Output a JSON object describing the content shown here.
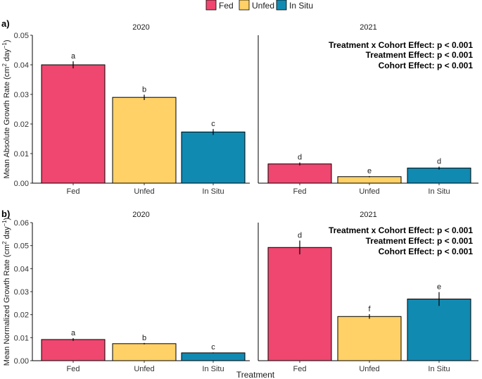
{
  "legend": {
    "items": [
      {
        "label": "Fed",
        "color": "#EF476F"
      },
      {
        "label": "Unfed",
        "color": "#FFD166"
      },
      {
        "label": "In Situ",
        "color": "#118AB2"
      }
    ]
  },
  "xlabel": "Treatment",
  "chart_data": [
    {
      "type": "bar",
      "panel_label": "a)",
      "ylabel": "Mean Absolute Growth Rate (cm",
      "ylabel_sup1": "2",
      "ylabel_mid": " day",
      "ylabel_sup2": "−1",
      "ylabel_end": ")",
      "ylim": [
        0,
        0.05
      ],
      "yticks": [
        "0.00",
        "0.01",
        "0.02",
        "0.03",
        "0.04",
        "0.05"
      ],
      "categories": [
        "Fed",
        "Unfed",
        "In Situ"
      ],
      "facets": [
        {
          "title": "2020",
          "values": [
            0.04,
            0.029,
            0.0173
          ],
          "errors": [
            0.0012,
            0.0009,
            0.001
          ],
          "letters": [
            "a",
            "b",
            "c"
          ]
        },
        {
          "title": "2021",
          "values": [
            0.0065,
            0.0022,
            0.0051
          ],
          "errors": [
            0.0005,
            0.0002,
            0.0005
          ],
          "letters": [
            "d",
            "e",
            "d"
          ]
        }
      ],
      "annotations": [
        "Treatment x Cohort Effect: p < 0.001",
        "Treatment Effect: p < 0.001",
        "Cohort Effect: p < 0.001"
      ]
    },
    {
      "type": "bar",
      "panel_label": "b)",
      "ylabel": "Mean Normalized Growth Rate (cm",
      "ylabel_sup1": "2",
      "ylabel_mid": " day",
      "ylabel_sup2": "−1",
      "ylabel_end": ")",
      "ylim": [
        0,
        0.06
      ],
      "yticks": [
        "0.00",
        "0.01",
        "0.02",
        "0.03",
        "0.04",
        "0.05",
        "0.06"
      ],
      "categories": [
        "Fed",
        "Unfed",
        "In Situ"
      ],
      "facets": [
        {
          "title": "2020",
          "values": [
            0.0092,
            0.0074,
            0.0034
          ],
          "errors": [
            0.0006,
            0.0003,
            0.0002
          ],
          "letters": [
            "a",
            "b",
            "c"
          ]
        },
        {
          "title": "2021",
          "values": [
            0.0492,
            0.0192,
            0.0268
          ],
          "errors": [
            0.003,
            0.001,
            0.003
          ],
          "letters": [
            "d",
            "f",
            "e"
          ]
        }
      ],
      "annotations": [
        "Treatment x Cohort Effect: p < 0.001",
        "Treatment Effect: p < 0.001",
        "Cohort Effect: p < 0.001"
      ]
    }
  ]
}
